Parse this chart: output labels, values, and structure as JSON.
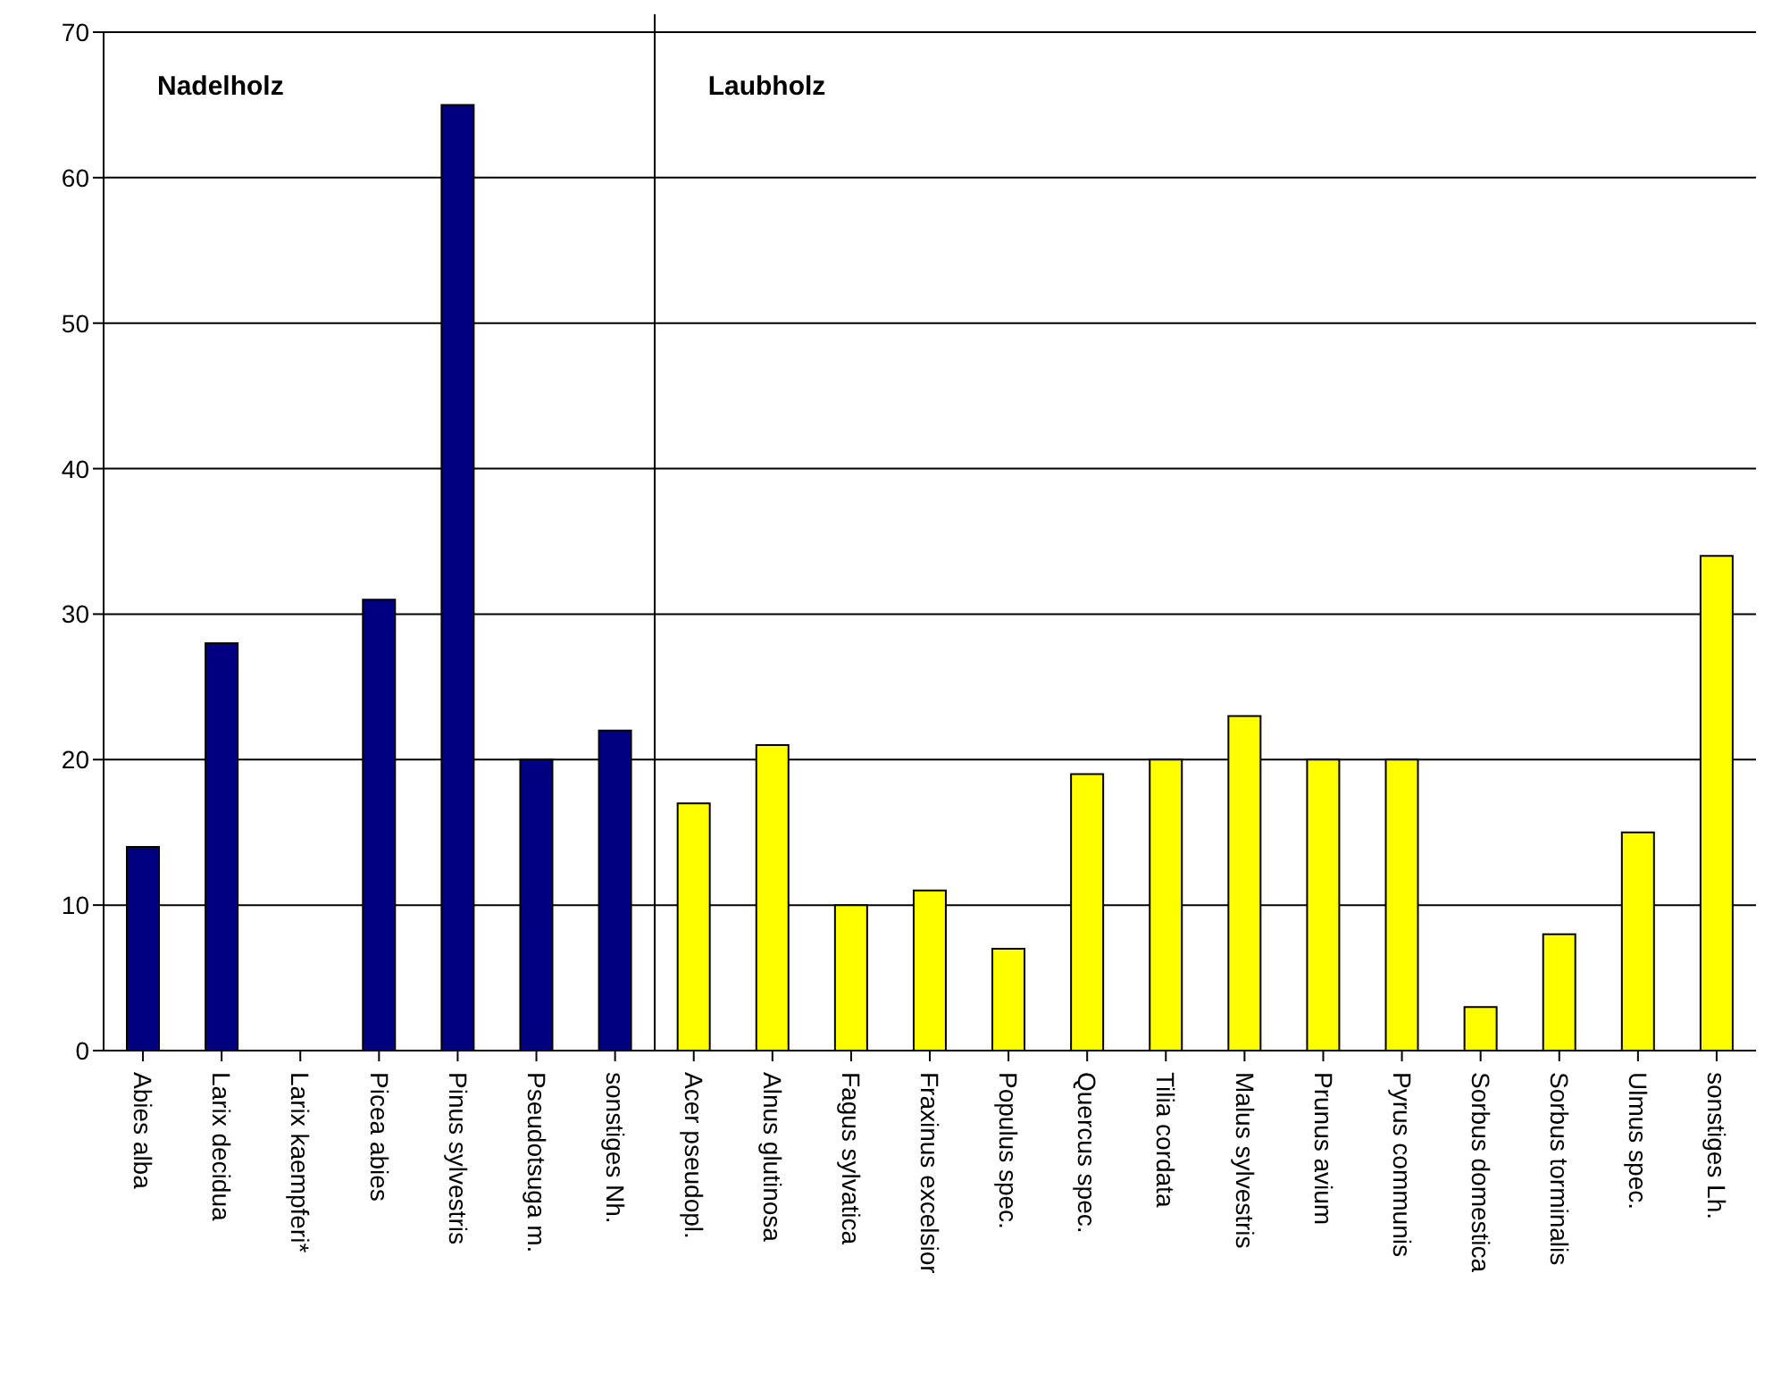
{
  "chart_data": {
    "type": "bar",
    "categories": [
      "Abies alba",
      "Larix decidua",
      "Larix kaempferi*",
      "Picea abies",
      "Pinus sylvestris",
      "Pseudotsuga m.",
      "sonstiges Nh.",
      "Acer pseudopl.",
      "Alnus glutinosa",
      "Fagus sylvatica",
      "Fraxinus excelsior",
      "Populus spec.",
      "Quercus spec.",
      "Tilia cordata",
      "Malus sylvestris",
      "Prunus avium",
      "Pyrus communis",
      "Sorbus domestica",
      "Sorbus torminalis",
      "Ulmus spec.",
      "sonstiges Lh."
    ],
    "values": [
      14,
      28,
      0,
      31,
      65,
      20,
      22,
      17,
      21,
      10,
      11,
      7,
      19,
      20,
      23,
      20,
      20,
      3,
      8,
      15,
      34
    ],
    "colors": [
      "#000080",
      "#000080",
      "#000080",
      "#000080",
      "#000080",
      "#000080",
      "#000080",
      "#ffff00",
      "#ffff00",
      "#ffff00",
      "#ffff00",
      "#ffff00",
      "#ffff00",
      "#ffff00",
      "#ffff00",
      "#ffff00",
      "#ffff00",
      "#ffff00",
      "#ffff00",
      "#ffff00",
      "#ffff00"
    ],
    "annotations": [
      "Nadelholz",
      "Laubholz"
    ],
    "ylim": [
      0,
      70
    ],
    "yticks": [
      0,
      10,
      20,
      30,
      40,
      50,
      60,
      70
    ],
    "grid": "y"
  }
}
